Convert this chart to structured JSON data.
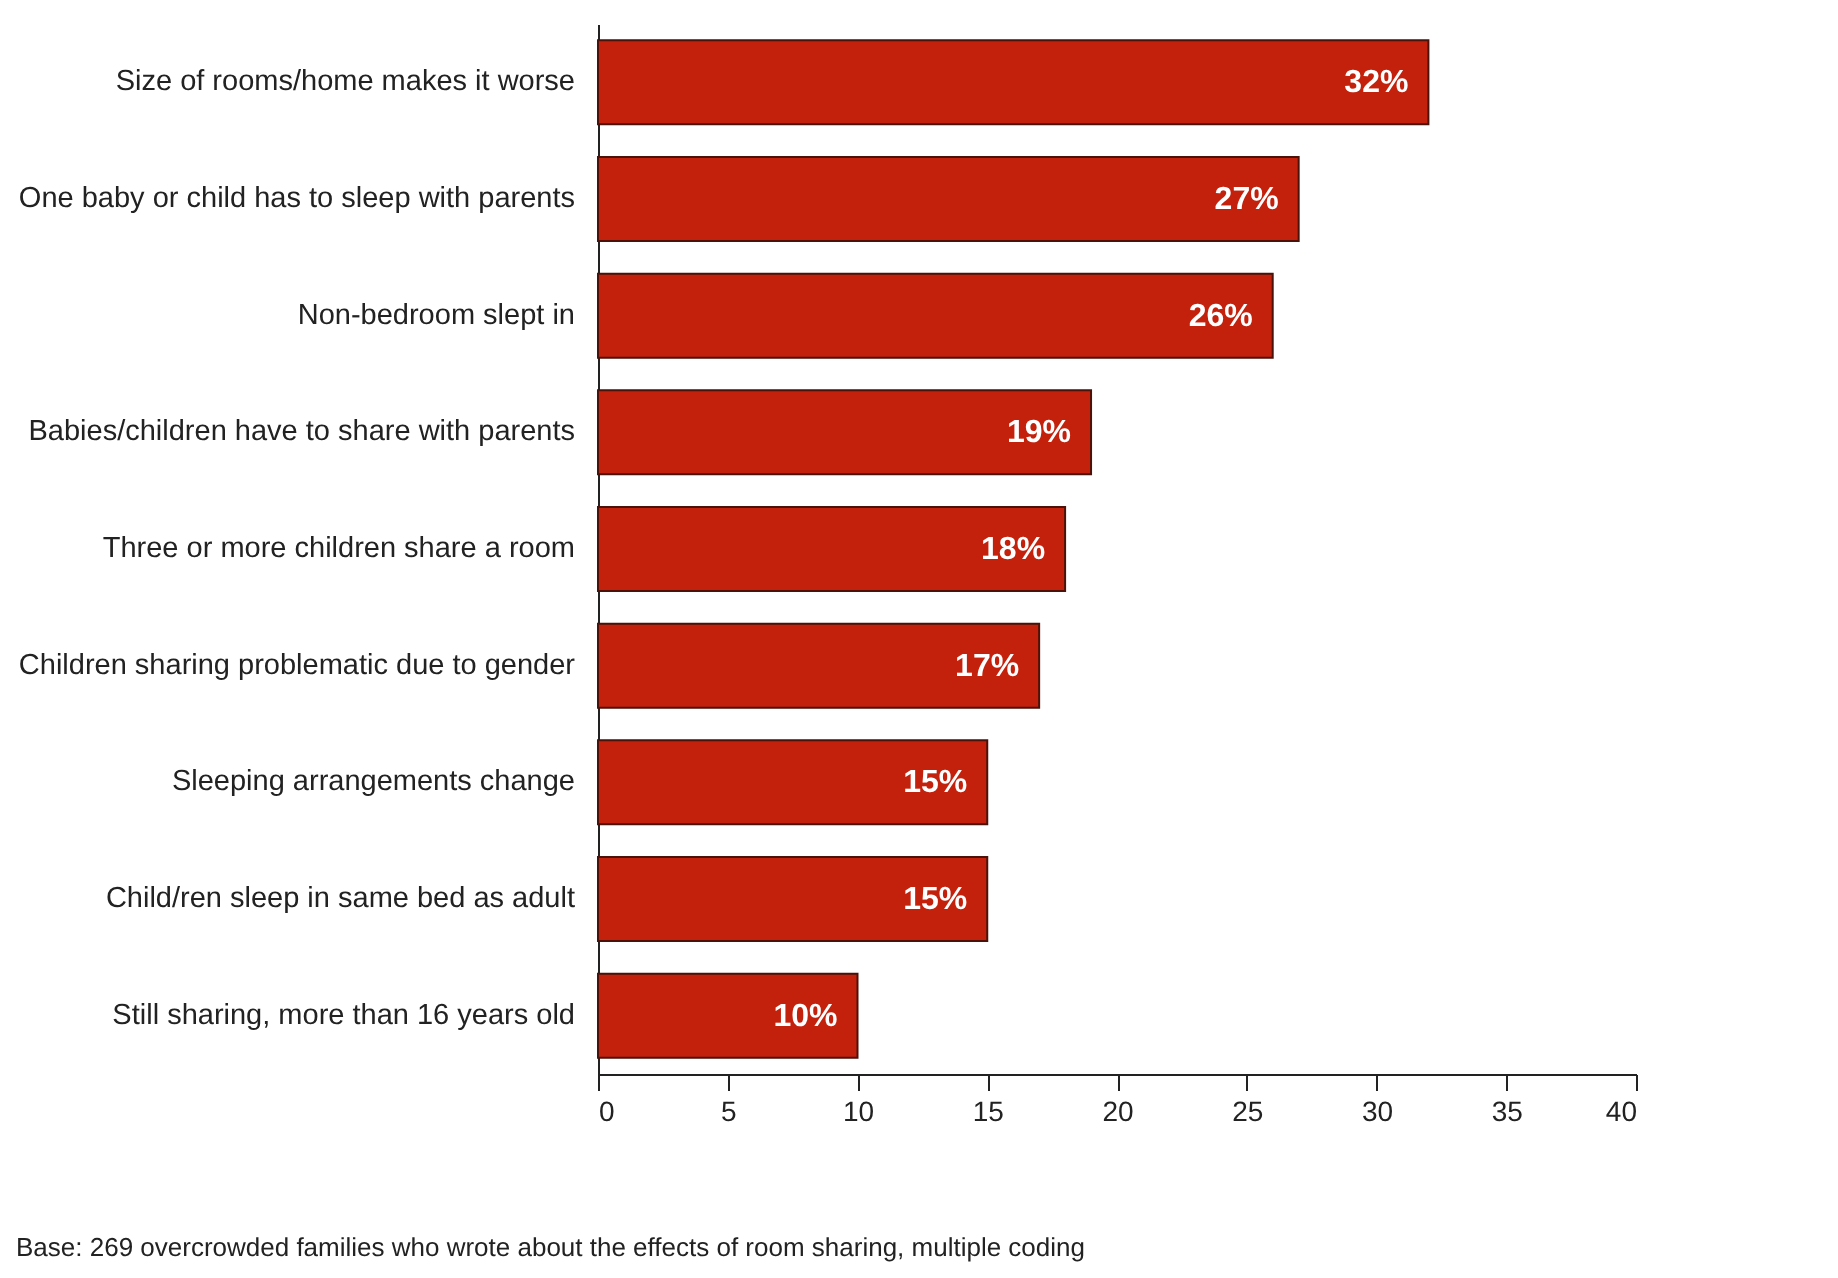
{
  "chart_data": {
    "type": "bar",
    "orientation": "horizontal",
    "categories": [
      "Size of rooms/home makes it worse",
      "One baby or child has to sleep with parents",
      "Non-bedroom slept in",
      "Babies/children have to share with parents",
      "Three or more children share a room",
      "Children sharing problematic due to gender",
      "Sleeping arrangements change",
      "Child/ren sleep in same bed as adult",
      "Still sharing, more than 16 years old"
    ],
    "values": [
      32,
      27,
      26,
      19,
      18,
      17,
      15,
      15,
      10
    ],
    "value_labels": [
      "32%",
      "27%",
      "26%",
      "19%",
      "18%",
      "17%",
      "15%",
      "15%",
      "10%"
    ],
    "color": "#c4210c",
    "xlim": [
      0,
      40
    ],
    "xticks": [
      0,
      5,
      10,
      15,
      20,
      25,
      30,
      35,
      40
    ],
    "grid": false,
    "annotations": [
      "Base: 269 overcrowded families who wrote about the effects of room sharing, multiple coding"
    ]
  }
}
